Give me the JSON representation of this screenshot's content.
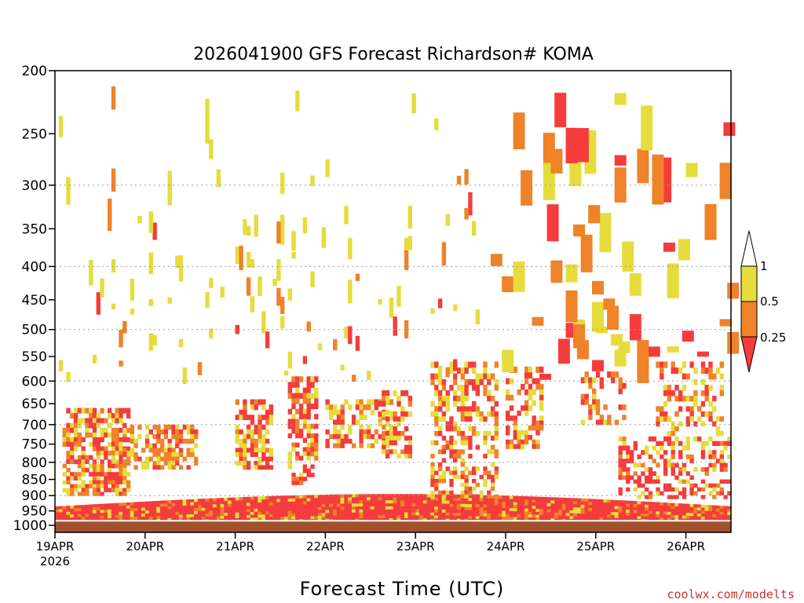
{
  "chart_data": {
    "type": "heatmap",
    "title": "2026041900 GFS Forecast Richardson# KOMA",
    "xlabel": "Forecast Time (UTC)",
    "ylabel": "",
    "credit": "coolwx.com/modelts",
    "x_ticks": [
      {
        "label": "19APR",
        "sublabel": "2026",
        "hour": 0
      },
      {
        "label": "20APR",
        "sublabel": "",
        "hour": 24
      },
      {
        "label": "21APR",
        "sublabel": "",
        "hour": 48
      },
      {
        "label": "22APR",
        "sublabel": "",
        "hour": 72
      },
      {
        "label": "23APR",
        "sublabel": "",
        "hour": 96
      },
      {
        "label": "24APR",
        "sublabel": "",
        "hour": 120
      },
      {
        "label": "25APR",
        "sublabel": "",
        "hour": 144
      },
      {
        "label": "26APR",
        "sublabel": "",
        "hour": 168
      }
    ],
    "xlim": [
      0,
      180
    ],
    "y_ticks": [
      200,
      250,
      300,
      350,
      400,
      450,
      500,
      550,
      600,
      650,
      700,
      750,
      800,
      850,
      900,
      950,
      1000
    ],
    "ylim": [
      200,
      1025
    ],
    "y_scale": "log-pressure (inverted)",
    "grid_levels": [
      300,
      400,
      500,
      600,
      700,
      800,
      900
    ],
    "ground_level_hpa": 985,
    "color_scale": [
      {
        "label": "1",
        "color": "#ffffff",
        "range": [
          1,
          null
        ]
      },
      {
        "label": "0.5",
        "color": "#e6dc3c",
        "range": [
          0.5,
          1
        ]
      },
      {
        "label": "0.25",
        "color": "#f08228",
        "range": [
          0.25,
          0.5
        ]
      },
      {
        "label": "",
        "color": "#f53c3c",
        "range": [
          null,
          0.25
        ]
      }
    ],
    "ground_color": "#a0522d"
  }
}
